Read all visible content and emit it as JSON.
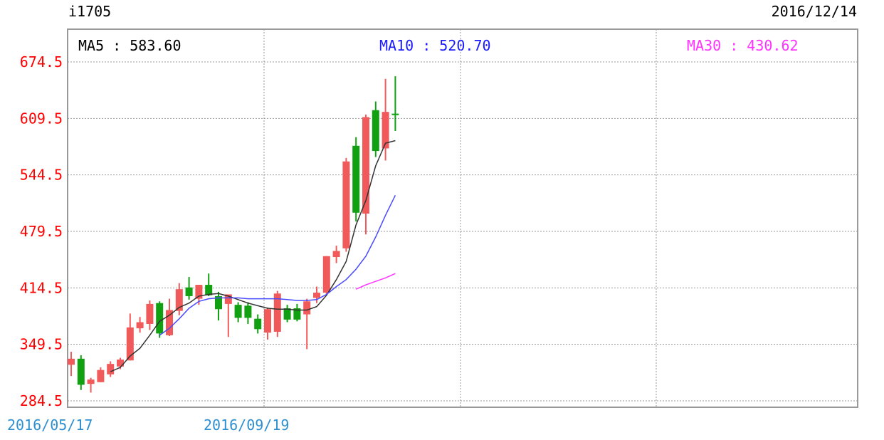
{
  "header": {
    "symbol": "i1705",
    "date": "2016/12/14"
  },
  "ma_labels": [
    {
      "name": "MA5",
      "text": "MA5 : 583.60",
      "color": "#000000"
    },
    {
      "name": "MA10",
      "text": "MA10 : 520.70",
      "color": "#1a1aff"
    },
    {
      "name": "MA30",
      "text": "MA30 : 430.62",
      "color": "#ff33ff"
    }
  ],
  "colors": {
    "up": "#f05a5a",
    "down": "#11a011",
    "ytick": "#ff0000",
    "xtick": "#2e8fd0",
    "grid": "#999999"
  },
  "chart_data": {
    "type": "candlestick",
    "y_ticks": [
      "674.5",
      "609.5",
      "544.5",
      "479.5",
      "414.5",
      "349.5",
      "284.5"
    ],
    "ylim": [
      284.5,
      674.5
    ],
    "x_tick_labels": [
      {
        "label": "2016/05/17",
        "index": 0
      },
      {
        "label": "2016/09/19",
        "index": 20
      }
    ],
    "candles": [
      {
        "o": 326,
        "h": 341,
        "l": 313,
        "c": 333
      },
      {
        "o": 333,
        "h": 337,
        "l": 297,
        "c": 303
      },
      {
        "o": 304,
        "h": 311,
        "l": 294,
        "c": 309
      },
      {
        "o": 306,
        "h": 323,
        "l": 306,
        "c": 320
      },
      {
        "o": 315,
        "h": 330,
        "l": 312,
        "c": 327
      },
      {
        "o": 324,
        "h": 334,
        "l": 321,
        "c": 332
      },
      {
        "o": 331,
        "h": 385,
        "l": 331,
        "c": 369
      },
      {
        "o": 368,
        "h": 381,
        "l": 363,
        "c": 375
      },
      {
        "o": 373,
        "h": 400,
        "l": 366,
        "c": 396
      },
      {
        "o": 397,
        "h": 399,
        "l": 357,
        "c": 362
      },
      {
        "o": 360,
        "h": 402,
        "l": 359,
        "c": 389
      },
      {
        "o": 388,
        "h": 420,
        "l": 383,
        "c": 413
      },
      {
        "o": 415,
        "h": 427,
        "l": 401,
        "c": 405
      },
      {
        "o": 402,
        "h": 418,
        "l": 395,
        "c": 418
      },
      {
        "o": 418,
        "h": 431,
        "l": 405,
        "c": 406
      },
      {
        "o": 405,
        "h": 410,
        "l": 377,
        "c": 390
      },
      {
        "o": 396,
        "h": 406,
        "l": 358,
        "c": 407
      },
      {
        "o": 395,
        "h": 398,
        "l": 375,
        "c": 380
      },
      {
        "o": 394,
        "h": 398,
        "l": 373,
        "c": 380
      },
      {
        "o": 379,
        "h": 384,
        "l": 362,
        "c": 367
      },
      {
        "o": 363,
        "h": 392,
        "l": 355,
        "c": 390
      },
      {
        "o": 364,
        "h": 411,
        "l": 358,
        "c": 408
      },
      {
        "o": 391,
        "h": 395,
        "l": 375,
        "c": 378
      },
      {
        "o": 391,
        "h": 396,
        "l": 376,
        "c": 378
      },
      {
        "o": 384,
        "h": 402,
        "l": 344,
        "c": 399
      },
      {
        "o": 403,
        "h": 416,
        "l": 397,
        "c": 409
      },
      {
        "o": 409,
        "h": 451,
        "l": 407,
        "c": 451
      },
      {
        "o": 450,
        "h": 463,
        "l": 443,
        "c": 457
      },
      {
        "o": 460,
        "h": 564,
        "l": 456,
        "c": 560
      },
      {
        "o": 578,
        "h": 588,
        "l": 491,
        "c": 501
      },
      {
        "o": 500,
        "h": 614,
        "l": 476,
        "c": 611
      },
      {
        "o": 619,
        "h": 629,
        "l": 565,
        "c": 572
      },
      {
        "o": 575,
        "h": 655,
        "l": 561,
        "c": 617
      },
      {
        "o": 615,
        "h": 658,
        "l": 595,
        "c": 614
      }
    ],
    "ma5": [
      null,
      null,
      null,
      null,
      318,
      323,
      336,
      345,
      360,
      376,
      383,
      392,
      397,
      405,
      407,
      408,
      405,
      401,
      397,
      394,
      391,
      390,
      390,
      389,
      389,
      393,
      406,
      424,
      445,
      487,
      515,
      555,
      581,
      584
    ],
    "ma10": [
      null,
      null,
      null,
      null,
      null,
      null,
      null,
      null,
      null,
      360,
      368,
      379,
      391,
      399,
      402,
      403,
      403,
      403,
      402,
      402,
      402,
      402,
      401,
      400,
      400,
      401,
      407,
      416,
      424,
      436,
      451,
      473,
      498,
      521
    ],
    "ma30": [
      null,
      null,
      null,
      null,
      null,
      null,
      null,
      null,
      null,
      null,
      null,
      null,
      null,
      null,
      null,
      null,
      null,
      null,
      null,
      null,
      null,
      null,
      null,
      null,
      null,
      null,
      null,
      null,
      null,
      413,
      418,
      422,
      426,
      431
    ]
  }
}
